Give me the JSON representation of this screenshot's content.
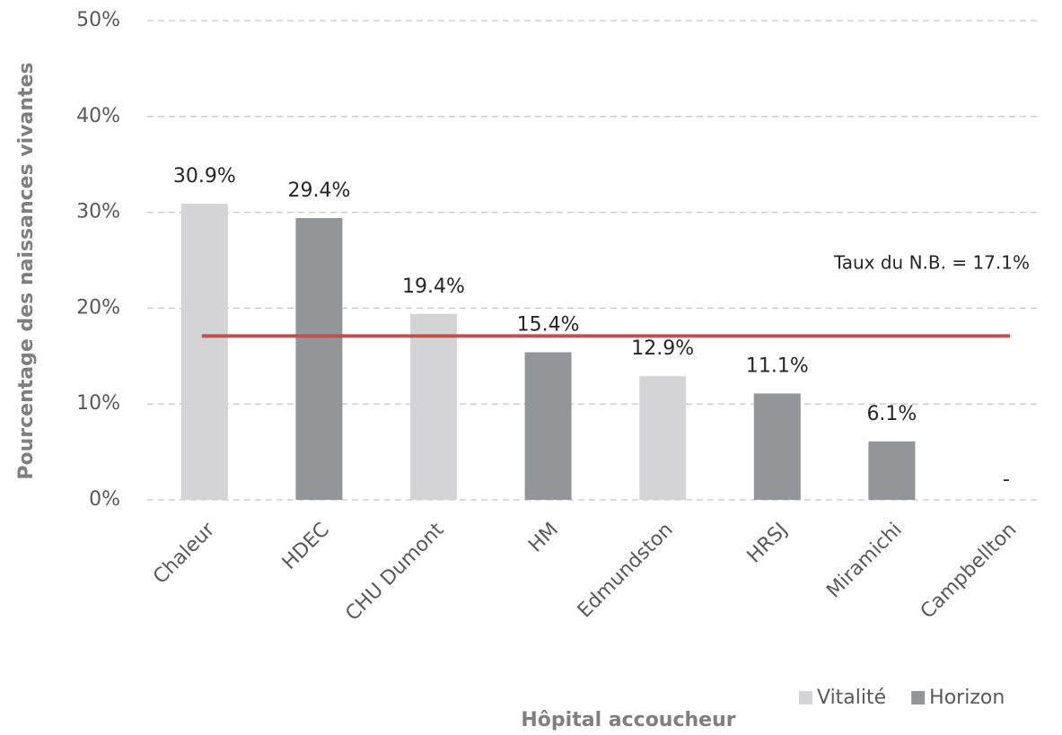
{
  "chart_data": {
    "type": "bar",
    "xlabel": "Hôpital accoucheur",
    "ylabel": "Pourcentage des naissances vivantes",
    "categories": [
      "Chaleur",
      "HDEC",
      "CHU Dumont",
      "HM",
      "Edmundston",
      "HRSJ",
      "Miramichi",
      "Campbellton"
    ],
    "series": [
      {
        "name": "Vitalité",
        "color": "#d4d4d6",
        "values": [
          30.9,
          null,
          19.4,
          null,
          12.9,
          null,
          null,
          null
        ],
        "value_labels": [
          "30.9%",
          null,
          "19.4%",
          null,
          "12.9%",
          null,
          null,
          "-"
        ]
      },
      {
        "name": "Horizon",
        "color": "#939598",
        "values": [
          null,
          29.4,
          null,
          15.4,
          null,
          11.1,
          6.1,
          null
        ],
        "value_labels": [
          null,
          "29.4%",
          null,
          "15.4%",
          null,
          "11.1%",
          "6.1%",
          null
        ]
      }
    ],
    "reference_line": {
      "value": 17.1,
      "label": "Taux du N.B. = 17.1%",
      "color": "#c0504d"
    },
    "ylim": [
      0,
      50
    ],
    "yticks": [
      {
        "value": 0,
        "label": "0%"
      },
      {
        "value": 10,
        "label": "10%"
      },
      {
        "value": 20,
        "label": "20%"
      },
      {
        "value": 30,
        "label": "30%"
      },
      {
        "value": 40,
        "label": "40%"
      },
      {
        "value": 50,
        "label": "50%"
      }
    ],
    "grid": true,
    "legend": "bottom-right"
  }
}
